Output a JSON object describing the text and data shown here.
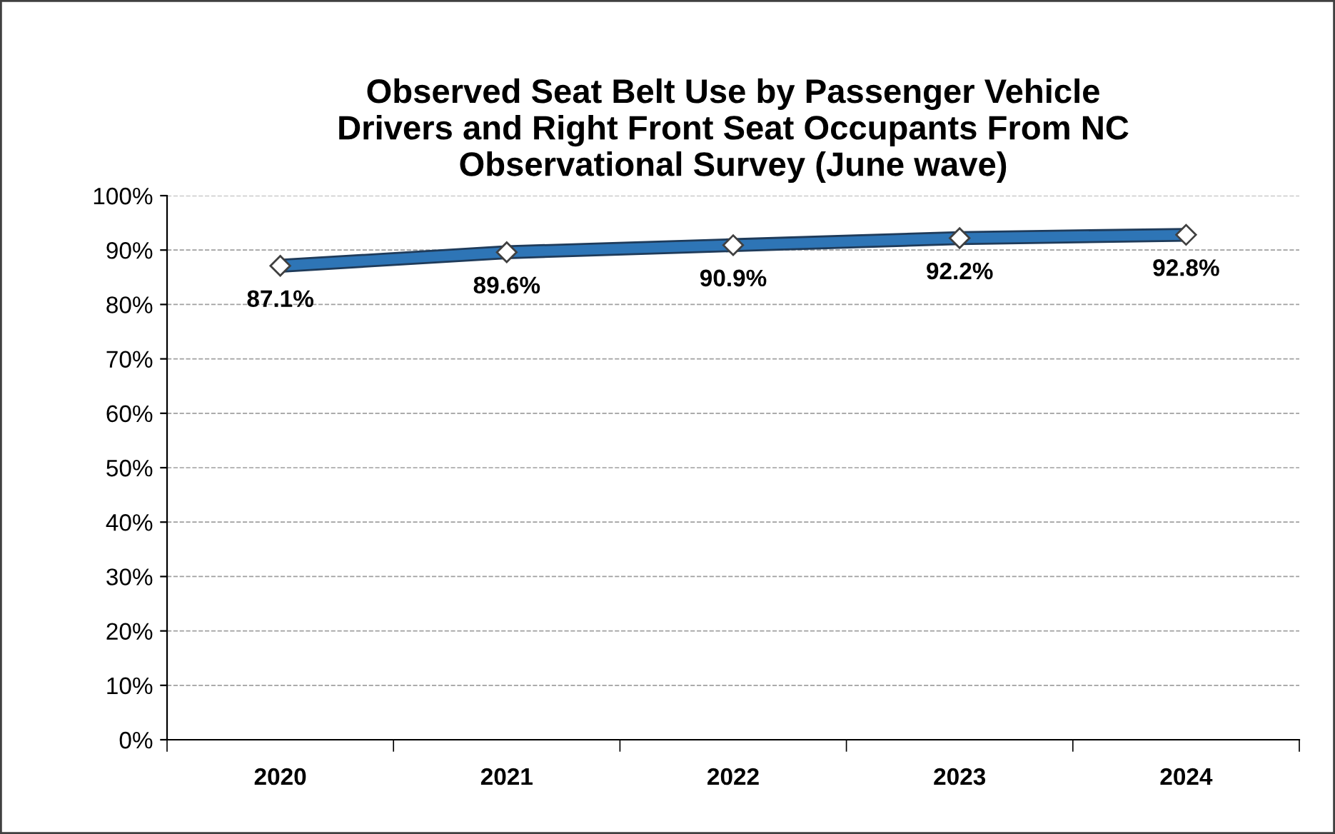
{
  "chart_data": {
    "type": "line",
    "title": "Observed Seat Belt Use by Passenger Vehicle\nDrivers and Right Front Seat Occupants From NC\nObservational Survey (June wave)",
    "categories": [
      "2020",
      "2021",
      "2022",
      "2023",
      "2024"
    ],
    "series": [
      {
        "color": "#2e75b6",
        "values": [
          87.1,
          89.6,
          90.9,
          92.2,
          92.8
        ],
        "value_labels": [
          "87.1%",
          "89.6%",
          "90.9%",
          "92.2%",
          "92.8%"
        ]
      }
    ],
    "ylim": [
      0,
      100
    ],
    "yticks": [
      {
        "value": 0,
        "label": "0%"
      },
      {
        "value": 10,
        "label": "10%"
      },
      {
        "value": 20,
        "label": "20%"
      },
      {
        "value": 30,
        "label": "30%"
      },
      {
        "value": 40,
        "label": "40%"
      },
      {
        "value": 50,
        "label": "50%"
      },
      {
        "value": 60,
        "label": "60%"
      },
      {
        "value": 70,
        "label": "70%"
      },
      {
        "value": 80,
        "label": "80%"
      },
      {
        "value": 90,
        "label": "90%"
      },
      {
        "value": 100,
        "label": "100%"
      }
    ],
    "grid": "y",
    "legend": false,
    "marker": "diamond",
    "line_style": "solid"
  }
}
